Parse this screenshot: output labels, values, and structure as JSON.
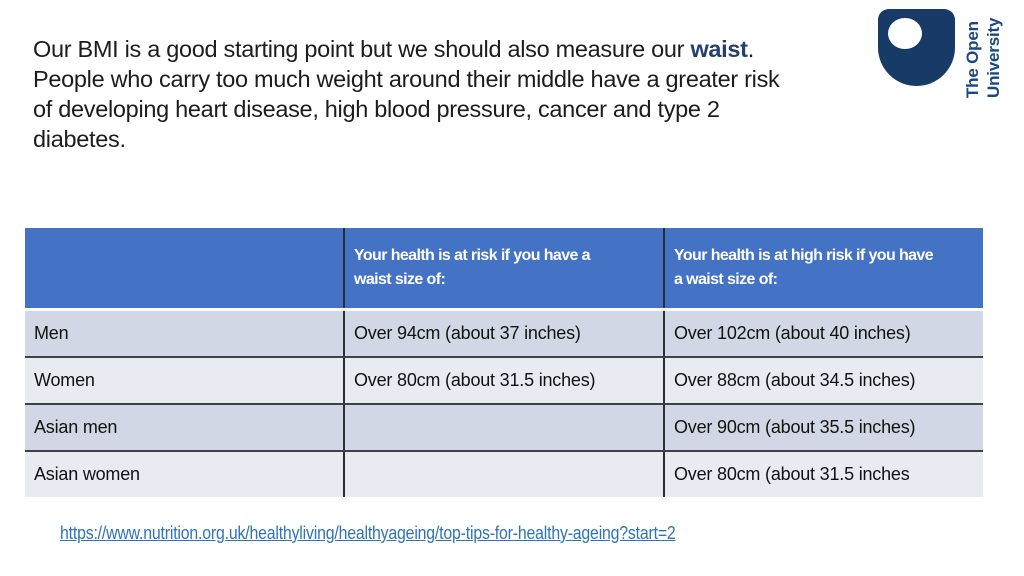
{
  "paragraph": {
    "line1_before": "Our BMI is a good starting point but we should also measure our ",
    "line1_highlight": "waist",
    "line1_after": ".",
    "line2": "People who carry too much weight around their middle have a greater risk",
    "line3": "of developing heart disease, high blood pressure, cancer and type 2",
    "line4": "diabetes."
  },
  "logo": {
    "line1": "The Open",
    "line2": "University",
    "shield_color": "#173A67",
    "text_color": "#1C4880"
  },
  "table": {
    "header": {
      "col1": "",
      "col2_line1": "Your health is at risk if you have a",
      "col2_line2": "waist size of:",
      "col3_line1": "Your health is at high risk if you have",
      "col3_line2": "a waist size of:"
    },
    "rows": [
      [
        "Men",
        "Over 94cm (about 37 inches)",
        "Over 102cm (about 40 inches)"
      ],
      [
        "Women",
        "Over 80cm (about 31.5 inches)",
        "Over 88cm (about 34.5 inches)"
      ],
      [
        "Asian men",
        "",
        "Over 90cm (about 35.5 inches)"
      ],
      [
        "Asian women",
        "",
        "Over 80cm (about 31.5 inches"
      ]
    ]
  },
  "link": {
    "url_text": "https://www.nutrition.org.uk/healthyliving/healthyageing/top-tips-for-healthy-ageing?start=2"
  },
  "colors": {
    "header_bg": "#4472C4",
    "band_dark": "#D2D7E6",
    "band_light": "#E9EBF3",
    "highlight_text": "#24406E",
    "link_color": "#2E74B6",
    "brand_navy": "#173A67"
  }
}
